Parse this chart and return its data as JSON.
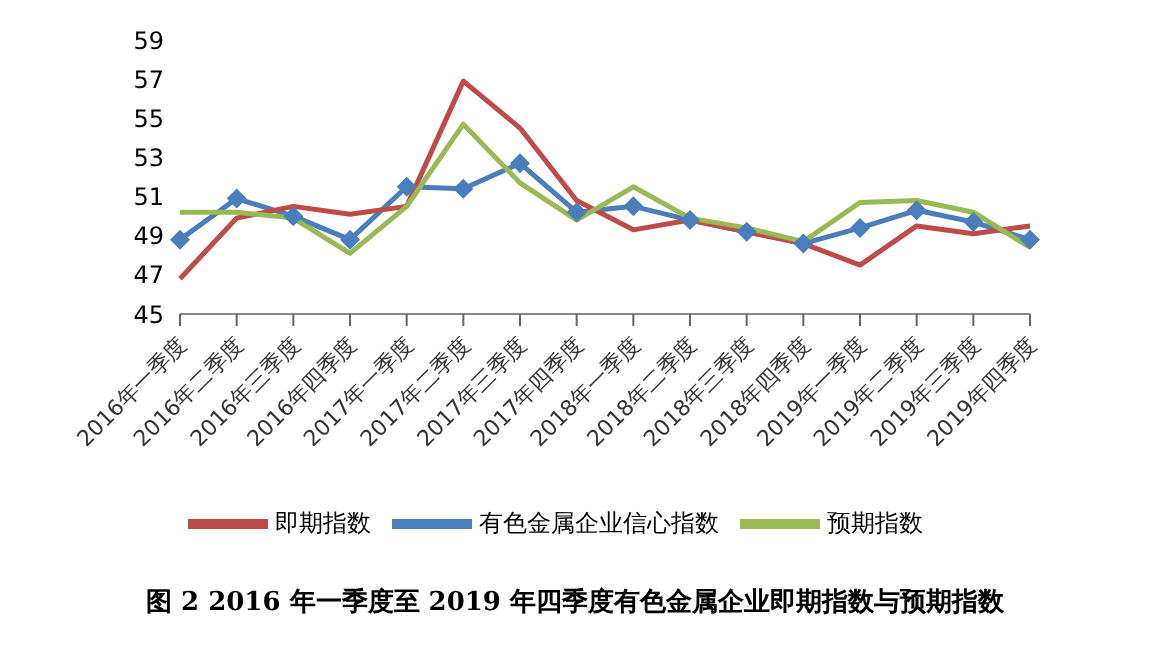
{
  "chart_data": {
    "type": "line",
    "title": "图 2  2016 年一季度至 2019 年四季度有色金属企业即期指数与预期指数",
    "categories": [
      "2016年一季度",
      "2016年二季度",
      "2016年三季度",
      "2016年四季度",
      "2017年一季度",
      "2017年二季度",
      "2017年三季度",
      "2017年四季度",
      "2018年一季度",
      "2018年二季度",
      "2018年三季度",
      "2018年四季度",
      "2019年一季度",
      "2019年二季度",
      "2019年三季度",
      "2019年四季度"
    ],
    "series": [
      {
        "name": "有色金属企业信心指数",
        "color": "#4a7ebb",
        "marker": "diamond",
        "values": [
          48.8,
          50.9,
          50.0,
          48.8,
          51.5,
          51.4,
          52.7,
          50.2,
          50.5,
          49.8,
          49.2,
          48.6,
          49.4,
          50.3,
          49.7,
          48.8
        ]
      },
      {
        "name": "即期指数",
        "color": "#be4b48",
        "marker": "none",
        "values": [
          46.8,
          49.9,
          50.5,
          50.1,
          50.5,
          56.9,
          54.5,
          50.8,
          49.3,
          49.8,
          49.2,
          48.6,
          47.5,
          49.5,
          49.1,
          49.5
        ]
      },
      {
        "name": "预期指数",
        "color": "#98b954",
        "marker": "none",
        "values": [
          50.2,
          50.2,
          49.9,
          48.1,
          50.5,
          54.7,
          51.7,
          49.8,
          51.5,
          49.9,
          49.4,
          48.7,
          50.7,
          50.8,
          50.2,
          48.4
        ]
      }
    ],
    "ylim": [
      45,
      59
    ],
    "yticks": [
      45,
      47,
      49,
      51,
      53,
      55,
      57,
      59
    ],
    "grid": false,
    "legend": "bottom",
    "line_style": "solid"
  }
}
